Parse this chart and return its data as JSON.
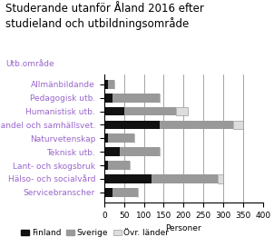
{
  "title": "Studerande utanför Åland 2016 efter\nstudieland och utbildningsområde",
  "categories": [
    "Allmänbildande",
    "Pedagogisk utb.",
    "Humanistisk utb.",
    "Handel och samhällsvet.",
    "Naturvetenskap",
    "Teknisk utb.",
    "Lant- och skogsbruk",
    "Hälso- och socialvård",
    "Servicebranscher"
  ],
  "y_label_header": "Utb.område",
  "xlabel": "Personer",
  "finland": [
    10,
    20,
    50,
    140,
    10,
    40,
    10,
    120,
    20
  ],
  "sverige": [
    15,
    120,
    130,
    185,
    65,
    100,
    55,
    165,
    65
  ],
  "ovr_lander": [
    0,
    0,
    30,
    25,
    0,
    0,
    0,
    15,
    0
  ],
  "xlim": [
    0,
    400
  ],
  "xticks": [
    0,
    50,
    100,
    150,
    200,
    250,
    300,
    350,
    400
  ],
  "color_finland": "#111111",
  "color_sverige": "#999999",
  "color_ovr": "#dddddd",
  "legend_labels": [
    "Finland",
    "Sverige",
    "Övr. länder"
  ],
  "title_fontsize": 8.5,
  "label_fontsize": 6.5,
  "tick_fontsize": 6.5,
  "header_color": "#9966cc"
}
